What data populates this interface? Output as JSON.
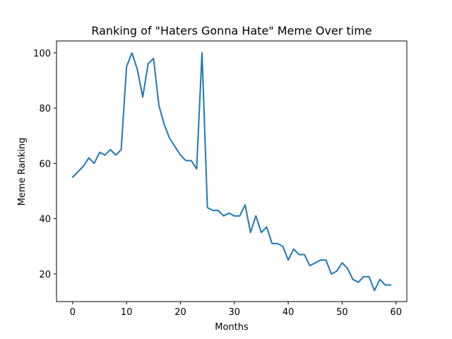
{
  "chart_data": {
    "type": "line",
    "title": "Ranking of \"Haters Gonna Hate\" Meme Over time",
    "xlabel": "Months",
    "ylabel": "Meme Ranking",
    "xlim": [
      -3,
      62
    ],
    "ylim": [
      10,
      104.3
    ],
    "xticks": [
      0,
      10,
      20,
      30,
      40,
      50,
      60
    ],
    "yticks": [
      20,
      40,
      60,
      80,
      100
    ],
    "grid": false,
    "legend": "none",
    "series": [
      {
        "color": "#1f77b4",
        "x": [
          0,
          1,
          2,
          3,
          4,
          5,
          6,
          7,
          8,
          9,
          10,
          11,
          12,
          13,
          14,
          15,
          16,
          17,
          18,
          19,
          20,
          21,
          22,
          23,
          24,
          25,
          26,
          27,
          28,
          29,
          30,
          31,
          32,
          33,
          34,
          35,
          36,
          37,
          38,
          39,
          40,
          41,
          42,
          43,
          44,
          45,
          46,
          47,
          48,
          49,
          50,
          51,
          52,
          53,
          54,
          55,
          56,
          57,
          58,
          59
        ],
        "values": [
          55,
          57,
          59,
          62,
          60,
          64,
          63,
          65,
          63,
          65,
          95,
          100,
          94,
          84,
          96,
          98,
          81,
          74,
          69,
          66,
          63,
          61,
          61,
          58,
          100,
          44,
          43,
          43,
          41,
          42,
          41,
          41,
          45,
          35,
          41,
          35,
          37,
          31,
          31,
          30,
          25,
          29,
          27,
          27,
          23,
          24,
          25,
          25,
          20,
          21,
          24,
          22,
          18,
          17,
          19,
          19,
          14,
          18,
          16,
          16
        ]
      }
    ]
  }
}
